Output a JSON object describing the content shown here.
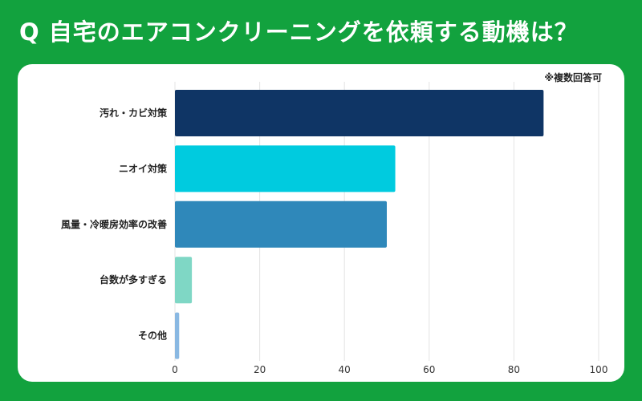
{
  "title": "Q 自宅のエアコンクリーニングを依頼する動機は？",
  "note": "※複数回答可",
  "colors": {
    "background": "#12a23e",
    "panel": "#ffffff",
    "grid": "#e3e3e3"
  },
  "chart_data": {
    "type": "bar",
    "orientation": "horizontal",
    "title": "Q 自宅のエアコンクリーニングを依頼する動機は？",
    "categories": [
      "汚れ・カビ対策",
      "ニオイ対策",
      "風量・冷暖房効率の改善",
      "台数が多すぎる",
      "その他"
    ],
    "values": [
      87,
      52,
      50,
      4,
      1
    ],
    "bar_colors": [
      "#0f3565",
      "#00cbdf",
      "#2f88ba",
      "#7fd7c5",
      "#89b8e2"
    ],
    "xlim": [
      0,
      100
    ],
    "xticks": [
      0,
      20,
      40,
      60,
      80,
      100
    ],
    "xlabel": "",
    "ylabel": "",
    "grid": true
  }
}
